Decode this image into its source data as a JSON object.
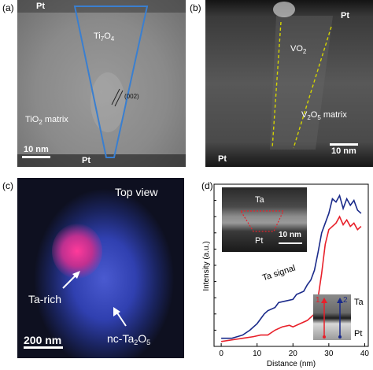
{
  "panels": {
    "a": {
      "label": "(a)",
      "pt_top": "Pt",
      "pt_bottom": "Pt",
      "phase_main": "Ti",
      "phase_sub1": "7",
      "phase_mid": "O",
      "phase_sub2": "4",
      "plane": "(002)",
      "matrix_main": "TiO",
      "matrix_sub": "2",
      "matrix_rest": " matrix",
      "scalebar": "10 nm"
    },
    "b": {
      "label": "(b)",
      "pt_top": "Pt",
      "pt_bottom": "Pt",
      "phase_main": "VO",
      "phase_sub": "2",
      "matrix_main": "V",
      "matrix_sub1": "2",
      "matrix_mid": "O",
      "matrix_sub2": "5",
      "matrix_rest": " matrix",
      "scalebar": "10 nm"
    },
    "c": {
      "label": "(c)",
      "title": "Top view",
      "ta_rich": "Ta-rich",
      "nc_main": "nc-Ta",
      "nc_sub1": "2",
      "nc_mid": "O",
      "nc_sub2": "5",
      "scalebar": "200 nm"
    },
    "d": {
      "label": "(d)",
      "inset_ta": "Ta",
      "inset_pt": "Pt",
      "inset_scalebar": "10 nm",
      "ta_signal": "Ta signal",
      "profile_1": "1",
      "profile_2": "2",
      "profile_ta": "Ta",
      "profile_pt": "Pt"
    }
  },
  "chart_data": {
    "type": "line",
    "title": "",
    "xlabel": "Distance (nm)",
    "ylabel": "Intensity (a.u.)",
    "xlim": [
      -2,
      41
    ],
    "ylim": [
      0,
      1
    ],
    "x_ticks": [
      0,
      10,
      20,
      30,
      40
    ],
    "series": [
      {
        "name": "1",
        "color": "#e8202a",
        "x": [
          0,
          3,
          6,
          9,
          11,
          13,
          15,
          17,
          19,
          20,
          22,
          24,
          26,
          27,
          28,
          29,
          30,
          31,
          32,
          33,
          34,
          35,
          36,
          37,
          38,
          39
        ],
        "y": [
          0.03,
          0.04,
          0.05,
          0.06,
          0.07,
          0.07,
          0.1,
          0.12,
          0.13,
          0.12,
          0.14,
          0.16,
          0.2,
          0.3,
          0.45,
          0.63,
          0.72,
          0.74,
          0.76,
          0.8,
          0.75,
          0.78,
          0.74,
          0.76,
          0.72,
          0.74
        ]
      },
      {
        "name": "2",
        "color": "#1a2a8a",
        "x": [
          0,
          3,
          6,
          8,
          10,
          12,
          13,
          15,
          16,
          18,
          20,
          21,
          23,
          24,
          25,
          26,
          27,
          28,
          29,
          30,
          31,
          32,
          33,
          34,
          35,
          36,
          37,
          38,
          39
        ],
        "y": [
          0.05,
          0.05,
          0.07,
          0.1,
          0.14,
          0.2,
          0.22,
          0.24,
          0.27,
          0.28,
          0.29,
          0.32,
          0.34,
          0.38,
          0.41,
          0.47,
          0.58,
          0.7,
          0.76,
          0.82,
          0.91,
          0.89,
          0.93,
          0.85,
          0.91,
          0.87,
          0.9,
          0.84,
          0.82
        ]
      }
    ]
  },
  "colors": {
    "funnel": "#3a7fd0",
    "dashed": "#d4d400",
    "inset_dash": "#e8202a",
    "series_1": "#e8202a",
    "series_2": "#1a2a8a"
  }
}
